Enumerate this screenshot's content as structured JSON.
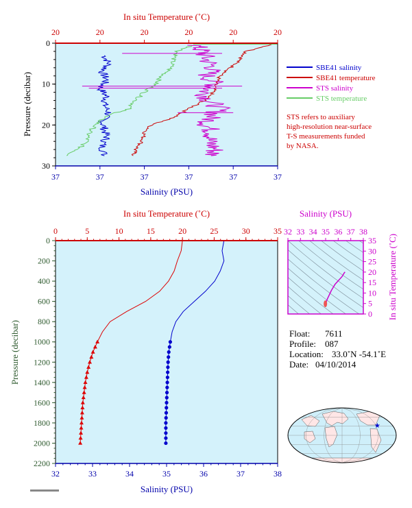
{
  "chart_data": [
    {
      "type": "line",
      "top_xlabel": "In situ Temperature (˚C)",
      "top_ticklabels": [
        "20",
        "20",
        "20",
        "20",
        "20",
        "20"
      ],
      "bottom_xlabel": "Salinity (PSU)",
      "bottom_ticklabels": [
        "37",
        "37",
        "37",
        "37",
        "37",
        "37"
      ],
      "ylabel": "Pressure (decibar)",
      "ylim": [
        30,
        0
      ],
      "yticks": [
        "0",
        "10",
        "20",
        "30"
      ],
      "series": [
        {
          "name": "SBE41 salinity",
          "color": "#0000cc",
          "axis": "x_fraction",
          "y": [
            3,
            5,
            7,
            9,
            11,
            13,
            15,
            17,
            19,
            21,
            23,
            25,
            27.5
          ],
          "x": [
            0.22,
            0.24,
            0.21,
            0.23,
            0.2,
            0.23,
            0.22,
            0.24,
            0.21,
            0.22,
            0.23,
            0.21,
            0.22
          ]
        },
        {
          "name": "SBE41 temperature",
          "color": "#cc0000",
          "axis": "x_fraction",
          "y": [
            0,
            2,
            4,
            6,
            8,
            10,
            12,
            14,
            16,
            18,
            20,
            22,
            24,
            26,
            27.5
          ],
          "x": [
            1.0,
            0.86,
            0.83,
            0.79,
            0.74,
            0.72,
            0.71,
            0.67,
            0.6,
            0.54,
            0.43,
            0.4,
            0.39,
            0.36,
            0.35
          ]
        },
        {
          "name": "STS salinity",
          "color": "#cc00cc",
          "axis": "x_fraction",
          "y": [
            0.5,
            2,
            4,
            6,
            8,
            10,
            12,
            14,
            16,
            18,
            20,
            22,
            24,
            26,
            27.5
          ],
          "x": [
            0.63,
            0.66,
            0.68,
            0.71,
            0.68,
            0.72,
            0.67,
            0.69,
            0.74,
            0.7,
            0.68,
            0.71,
            0.69,
            0.72,
            0.7
          ]
        },
        {
          "name": "STS temperature",
          "color": "#66cc66",
          "axis": "x_fraction",
          "y": [
            0.5,
            2,
            4,
            6,
            8,
            10,
            12,
            14,
            16,
            18,
            20,
            22,
            24,
            26,
            27.5
          ],
          "x": [
            0.62,
            0.55,
            0.53,
            0.52,
            0.48,
            0.45,
            0.4,
            0.36,
            0.33,
            0.22,
            0.18,
            0.15,
            0.14,
            0.1,
            0.05
          ]
        }
      ],
      "legend_position": "right",
      "note": [
        "STS refers to auxiliary",
        "high-resolution near-surface",
        "T-S measurements funded",
        "by NASA."
      ]
    },
    {
      "type": "line",
      "top_xlabel": "In situ Temperature (˚C)",
      "top_xlim": [
        0,
        35
      ],
      "top_ticklabels": [
        "0",
        "5",
        "10",
        "15",
        "20",
        "25",
        "30",
        "35"
      ],
      "bottom_xlabel": "Salinity (PSU)",
      "bottom_xlim": [
        32,
        38
      ],
      "bottom_ticklabels": [
        "32",
        "33",
        "34",
        "35",
        "36",
        "37",
        "38"
      ],
      "ylabel": "Pressure (decibar)",
      "ylim": [
        2200,
        0
      ],
      "yticks": [
        "0",
        "200",
        "400",
        "600",
        "800",
        "1000",
        "1200",
        "1400",
        "1600",
        "1800",
        "2000",
        "2200"
      ],
      "series": [
        {
          "name": "Temperature",
          "color": "#dd0000",
          "axis": "temperature",
          "pressure": [
            0,
            100,
            200,
            300,
            400,
            500,
            600,
            700,
            800,
            900,
            1000,
            1100,
            1200,
            1300,
            1400,
            1500,
            1600,
            1700,
            1800,
            1900,
            2000
          ],
          "values": [
            20.0,
            19.8,
            19.2,
            18.7,
            17.8,
            16.4,
            14.2,
            11.2,
            8.6,
            7.4,
            6.6,
            5.9,
            5.4,
            5.0,
            4.7,
            4.5,
            4.3,
            4.2,
            4.1,
            4.0,
            3.9
          ]
        },
        {
          "name": "Salinity",
          "color": "#0000cc",
          "axis": "salinity",
          "pressure": [
            0,
            100,
            200,
            300,
            400,
            500,
            600,
            700,
            800,
            900,
            1000,
            1100,
            1200,
            1300,
            1400,
            1500,
            1600,
            1700,
            1800,
            1900,
            2000
          ],
          "values": [
            36.55,
            36.5,
            36.55,
            36.45,
            36.3,
            36.05,
            35.75,
            35.45,
            35.25,
            35.15,
            35.1,
            35.06,
            35.04,
            35.03,
            35.02,
            35.01,
            35.0,
            34.99,
            34.98,
            34.98,
            34.98
          ]
        }
      ],
      "markers_from_pressure": 1000
    },
    {
      "type": "line",
      "kind": "T-S diagram",
      "top_xlabel": "Salinity (PSU)",
      "xlim": [
        32,
        38
      ],
      "xticklabels": [
        "32",
        "33",
        "34",
        "35",
        "36",
        "37",
        "38"
      ],
      "ylabel": "In situ Temperature (˚C)",
      "ylim": [
        0,
        35
      ],
      "yticklabels": [
        "0",
        "5",
        "10",
        "15",
        "20",
        "25",
        "30",
        "35"
      ],
      "series": [
        {
          "name": "T-S",
          "color": "#cc00cc",
          "salinity": [
            36.55,
            36.5,
            36.3,
            35.75,
            35.45,
            35.25,
            35.15,
            35.1,
            35.04,
            35.0,
            34.98
          ],
          "temperature": [
            20.0,
            19.8,
            17.8,
            14.2,
            11.2,
            8.6,
            7.4,
            6.6,
            5.4,
            4.3,
            3.9
          ]
        }
      ]
    }
  ],
  "info": {
    "float_label": "Float:",
    "float_value": "7611",
    "profile_label": "Profile:",
    "profile_value": "087",
    "location_label": "Location:",
    "location_value": "33.0˚N  -54.1˚E",
    "date_label": "Date:",
    "date_value": "04/10/2014"
  },
  "map": {
    "marker_lat": 33.0,
    "marker_lon": -54.1,
    "marker_color": "#0000cc",
    "ocean_color": "#cfeffa",
    "land_color": "#ffe6e6"
  },
  "colors": {
    "plot_bg": "#d4f2fb",
    "red_axis": "#cc0000",
    "blue_axis": "#0000aa",
    "green_axis": "#2e5a2e",
    "magenta_axis": "#cc00cc"
  }
}
